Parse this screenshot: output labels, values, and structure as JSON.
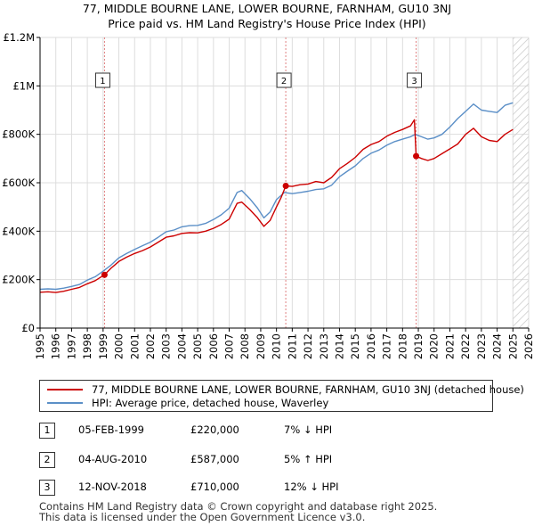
{
  "title_line1": "77, MIDDLE BOURNE LANE, LOWER BOURNE, FARNHAM, GU10 3NJ",
  "title_line2": "Price paid vs. HM Land Registry's House Price Index (HPI)",
  "chart_data": {
    "type": "line",
    "xlim": [
      1995,
      2026
    ],
    "ylim": [
      0,
      1200000
    ],
    "y_ticks": [
      0,
      200000,
      400000,
      600000,
      800000,
      1000000,
      1200000
    ],
    "y_tick_labels": [
      "£0",
      "£200K",
      "£400K",
      "£600K",
      "£800K",
      "£1M",
      "£1.2M"
    ],
    "x_ticks": [
      1995,
      1996,
      1997,
      1998,
      1999,
      2000,
      2001,
      2002,
      2003,
      2004,
      2005,
      2006,
      2007,
      2008,
      2009,
      2010,
      2011,
      2012,
      2013,
      2014,
      2015,
      2016,
      2017,
      2018,
      2019,
      2020,
      2021,
      2022,
      2023,
      2024,
      2025,
      2026
    ],
    "x_tick_labels": [
      "1995",
      "1996",
      "1997",
      "1998",
      "1999",
      "2000",
      "2001",
      "2002",
      "2003",
      "2004",
      "2005",
      "2006",
      "2007",
      "2008",
      "2009",
      "2010",
      "2011",
      "2012",
      "2013",
      "2014",
      "2015",
      "2016",
      "2017",
      "2018",
      "2019",
      "2020",
      "2021",
      "2022",
      "2023",
      "2024",
      "2025",
      "2026"
    ],
    "grid": true,
    "hatch_from": 2025.0,
    "series": [
      {
        "name": "77, MIDDLE BOURNE LANE, LOWER BOURNE, FARNHAM, GU10 3NJ (detached house)",
        "color": "#cc0000",
        "x": [
          1995.0,
          1995.5,
          1996.0,
          1996.5,
          1997.0,
          1997.5,
          1998.0,
          1998.5,
          1999.09,
          1999.5,
          2000.0,
          2000.5,
          2001.0,
          2001.5,
          2002.0,
          2002.5,
          2003.0,
          2003.5,
          2004.0,
          2004.5,
          2005.0,
          2005.5,
          2006.0,
          2006.5,
          2007.0,
          2007.5,
          2007.8,
          2008.3,
          2008.8,
          2009.2,
          2009.6,
          2010.0,
          2010.3,
          2010.59,
          2011.0,
          2011.5,
          2012.0,
          2012.5,
          2013.0,
          2013.5,
          2014.0,
          2014.5,
          2015.0,
          2015.5,
          2016.0,
          2016.5,
          2017.0,
          2017.5,
          2018.0,
          2018.5,
          2018.75,
          2018.86,
          2019.2,
          2019.6,
          2020.0,
          2020.5,
          2021.0,
          2021.5,
          2022.0,
          2022.5,
          2023.0,
          2023.5,
          2024.0,
          2024.5,
          2025.0
        ],
        "y": [
          148000,
          150000,
          147000,
          152000,
          160000,
          168000,
          183000,
          196000,
          220000,
          247000,
          275000,
          293000,
          308000,
          320000,
          335000,
          355000,
          375000,
          381000,
          391000,
          394000,
          393000,
          400000,
          412000,
          428000,
          450000,
          515000,
          520000,
          490000,
          455000,
          420000,
          445000,
          500000,
          540000,
          587000,
          585000,
          592000,
          595000,
          605000,
          600000,
          622000,
          658000,
          680000,
          705000,
          738000,
          758000,
          770000,
          792000,
          808000,
          820000,
          835000,
          860000,
          710000,
          700000,
          692000,
          700000,
          720000,
          740000,
          760000,
          800000,
          825000,
          790000,
          775000,
          770000,
          800000,
          820000
        ]
      },
      {
        "name": "HPI: Average price, detached house, Waverley",
        "color": "#5b8fc7",
        "x": [
          1995.0,
          1995.5,
          1996.0,
          1996.5,
          1997.0,
          1997.5,
          1998.0,
          1998.5,
          1999.0,
          1999.5,
          2000.0,
          2000.5,
          2001.0,
          2001.5,
          2002.0,
          2002.5,
          2003.0,
          2003.5,
          2004.0,
          2004.5,
          2005.0,
          2005.5,
          2006.0,
          2006.5,
          2007.0,
          2007.5,
          2007.8,
          2008.3,
          2008.8,
          2009.2,
          2009.6,
          2010.0,
          2010.5,
          2011.0,
          2011.5,
          2012.0,
          2012.5,
          2013.0,
          2013.5,
          2014.0,
          2014.5,
          2015.0,
          2015.5,
          2016.0,
          2016.5,
          2017.0,
          2017.5,
          2018.0,
          2018.5,
          2018.8,
          2019.2,
          2019.6,
          2020.0,
          2020.5,
          2021.0,
          2021.5,
          2022.0,
          2022.5,
          2023.0,
          2023.5,
          2024.0,
          2024.5,
          2025.0
        ],
        "y": [
          160000,
          162000,
          160000,
          165000,
          172000,
          180000,
          198000,
          212000,
          235000,
          260000,
          290000,
          308000,
          325000,
          340000,
          355000,
          375000,
          398000,
          405000,
          418000,
          423000,
          424000,
          432000,
          448000,
          468000,
          495000,
          560000,
          568000,
          535000,
          495000,
          455000,
          480000,
          530000,
          560000,
          555000,
          560000,
          565000,
          572000,
          575000,
          590000,
          625000,
          648000,
          670000,
          700000,
          722000,
          735000,
          755000,
          770000,
          780000,
          790000,
          800000,
          790000,
          780000,
          785000,
          800000,
          830000,
          865000,
          895000,
          925000,
          900000,
          895000,
          890000,
          920000,
          930000
        ]
      }
    ],
    "sales": [
      {
        "x": 1999.09,
        "y": 220000,
        "label": "1"
      },
      {
        "x": 2010.59,
        "y": 587000,
        "label": "2"
      },
      {
        "x": 2018.86,
        "y": 710000,
        "label": "3"
      }
    ]
  },
  "legend": {
    "property": "77, MIDDLE BOURNE LANE, LOWER BOURNE, FARNHAM, GU10 3NJ (detached house)",
    "hpi": "HPI: Average price, detached house, Waverley"
  },
  "sales_table": [
    {
      "num": "1",
      "date": "05-FEB-1999",
      "price": "£220,000",
      "hpi": "7% ↓ HPI"
    },
    {
      "num": "2",
      "date": "04-AUG-2010",
      "price": "£587,000",
      "hpi": "5% ↑ HPI"
    },
    {
      "num": "3",
      "date": "12-NOV-2018",
      "price": "£710,000",
      "hpi": "12% ↓ HPI"
    }
  ],
  "footer_line1": "Contains HM Land Registry data © Crown copyright and database right 2025.",
  "footer_line2": "This data is licensed under the Open Government Licence v3.0.",
  "colors": {
    "property": "#cc0000",
    "hpi": "#5b8fc7",
    "grid": "#dddddd",
    "hatch": "#c8c8c8"
  }
}
